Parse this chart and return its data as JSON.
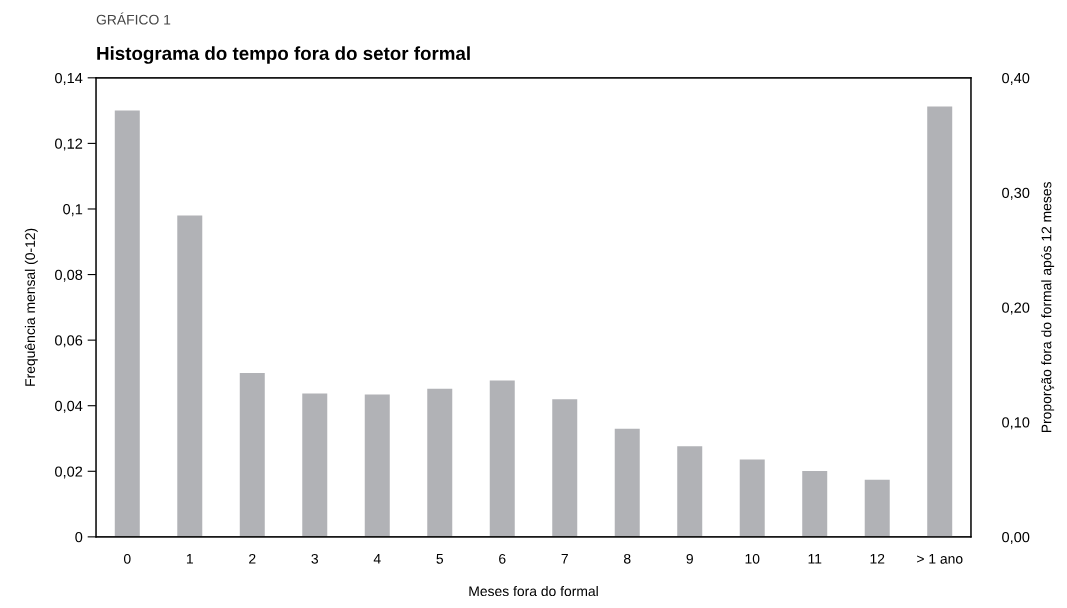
{
  "chart_data": {
    "type": "bar",
    "title": "Histograma do tempo fora do setor formal",
    "annotations": [
      "GRÁFICO 1"
    ],
    "xlabel": "Meses fora do formal",
    "ylabel": "Frequência mensal (0-12)",
    "y2label": "Proporção fora do formal após 12 meses",
    "categories": [
      "0",
      "1",
      "2",
      "3",
      "4",
      "5",
      "6",
      "7",
      "8",
      "9",
      "10",
      "11",
      "12",
      "> 1 ano"
    ],
    "series": [
      {
        "color": "#b1b2b6",
        "values": [
          0.13,
          0.098,
          0.05,
          0.0437,
          0.0434,
          0.0452,
          0.0477,
          0.042,
          0.033,
          0.0276,
          0.0236,
          0.0201,
          0.0174,
          null
        ]
      },
      {
        "color": "#b1b2b6",
        "axis": "y2",
        "values": [
          null,
          null,
          null,
          null,
          null,
          null,
          null,
          null,
          null,
          null,
          null,
          null,
          null,
          0.375
        ]
      }
    ],
    "ylim": [
      0,
      0.14
    ],
    "yticks": [
      0,
      {
        "value": 0.02,
        "label": "0,02"
      },
      {
        "value": 0.04,
        "label": "0,04"
      },
      {
        "value": 0.06,
        "label": "0,06"
      },
      {
        "value": 0.08,
        "label": "0,08"
      },
      {
        "value": 0.1,
        "label": "0,1"
      },
      {
        "value": 0.12,
        "label": "0,12"
      },
      {
        "value": 0.14,
        "label": "0,14"
      }
    ],
    "y2lim": [
      0,
      0.4
    ],
    "y2ticks": [
      {
        "value": 0,
        "label": "0,00"
      },
      {
        "value": 0.1,
        "label": "0,10"
      },
      {
        "value": 0.2,
        "label": "0,20"
      },
      {
        "value": 0.3,
        "label": "0,30"
      },
      {
        "value": 0.4,
        "label": "0,40"
      }
    ],
    "grid": false
  }
}
